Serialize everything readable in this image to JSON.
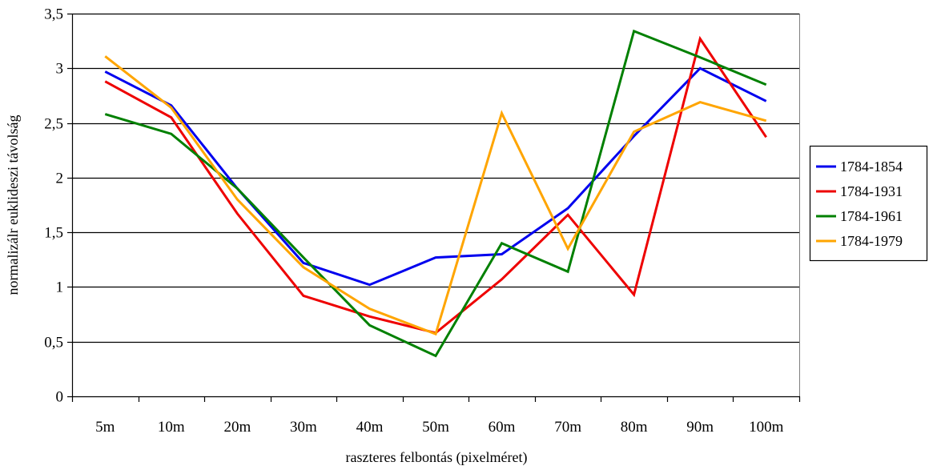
{
  "chart_data": {
    "type": "line",
    "title": "",
    "xlabel": "raszteres felbontás (pixelméret)",
    "ylabel": "normalizálr euklideszi távolság",
    "categories": [
      "5m",
      "10m",
      "20m",
      "30m",
      "40m",
      "50m",
      "60m",
      "70m",
      "80m",
      "90m",
      "100m"
    ],
    "ylim": [
      0,
      3.5
    ],
    "yticks": [
      "0",
      "0,5",
      "1",
      "1,5",
      "2",
      "2,5",
      "3",
      "3,5"
    ],
    "ytick_values": [
      0,
      0.5,
      1,
      1.5,
      2,
      2.5,
      3,
      3.5
    ],
    "grid": "horizontal",
    "legend_position": "right",
    "series": [
      {
        "name": "1784-1854",
        "color": "#0000ee",
        "values": [
          2.97,
          2.66,
          1.9,
          1.22,
          1.02,
          1.27,
          1.3,
          1.72,
          2.38,
          3.0,
          2.7
        ]
      },
      {
        "name": "1784-1931",
        "color": "#ee0000",
        "values": [
          2.88,
          2.55,
          1.67,
          0.92,
          0.73,
          0.58,
          1.07,
          1.66,
          0.93,
          3.27,
          2.37
        ]
      },
      {
        "name": "1784-1961",
        "color": "#008000",
        "values": [
          2.58,
          2.4,
          1.9,
          1.27,
          0.65,
          0.37,
          1.4,
          1.14,
          3.34,
          3.1,
          2.85
        ]
      },
      {
        "name": "1784-1979",
        "color": "#ffa500",
        "values": [
          3.11,
          2.64,
          1.8,
          1.18,
          0.8,
          0.57,
          2.59,
          1.35,
          2.42,
          2.69,
          2.52
        ]
      }
    ]
  }
}
